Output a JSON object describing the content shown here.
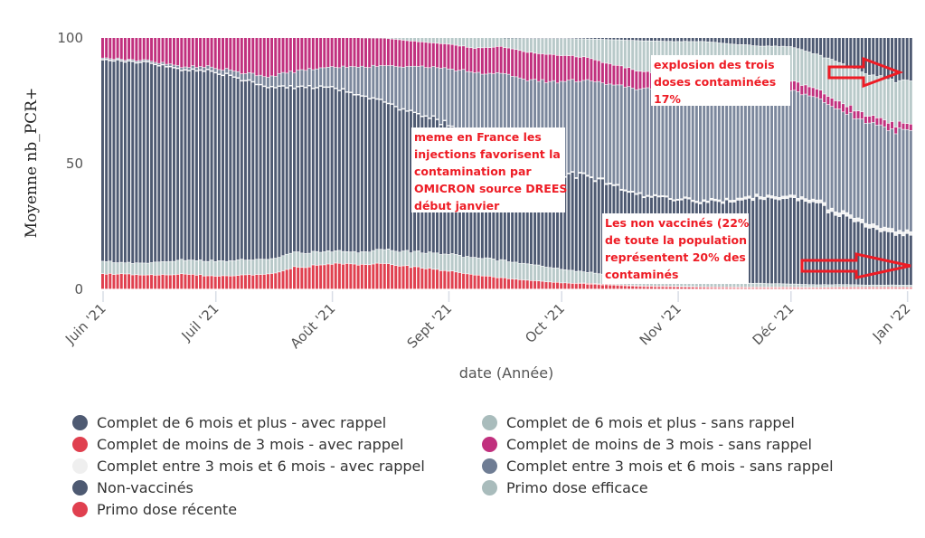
{
  "chart_data": {
    "type": "bar",
    "stacked": true,
    "normalized_percent": true,
    "title": "",
    "xlabel": "date (Année)",
    "ylabel": "Moyenne nb_PCR+",
    "ylim": [
      0,
      100
    ],
    "yticks": [
      "0",
      "50",
      "100"
    ],
    "ytick_values": [
      0,
      50,
      100
    ],
    "xtick_labels": [
      "Juin '21",
      "Juil '21",
      "Août '21",
      "Sept '21",
      "Oct '21",
      "Nov '21",
      "Déc '21",
      "Jan '22"
    ],
    "x_start": "2021-06-01",
    "x_end": "2022-01-02",
    "granularity": "daily",
    "anchor_days": [
      0,
      7,
      14,
      21,
      30,
      37,
      44,
      51,
      61,
      68,
      75,
      82,
      92,
      99,
      106,
      113,
      122,
      129,
      136,
      143,
      153,
      160,
      167,
      174,
      183,
      190,
      197,
      204,
      210,
      214
    ],
    "stack_order_bottom_to_top": [
      "Primo dose récente",
      "Complet de moins de 3 mois - avec rappel",
      "Primo dose efficace",
      "Non-vaccinés",
      "Complet entre 3 mois et 6 mois - avec rappel",
      "Complet entre 3 mois et 6 mois - sans rappel",
      "Complet de moins de 3 mois - sans rappel",
      "Complet de 6 mois et plus - sans rappel",
      "Complet de 6 mois et plus - avec rappel"
    ],
    "series": [
      {
        "name": "Primo dose récente",
        "color": "#e0404f",
        "values": [
          6,
          6,
          5.5,
          6,
          5,
          5.5,
          6,
          8.5,
          10,
          10,
          10,
          9,
          7,
          5.5,
          4.5,
          3.5,
          2.5,
          2,
          1.5,
          1,
          0.8,
          0.6,
          0.5,
          0.4,
          0.4,
          0.3,
          0.3,
          0.3,
          0.3,
          0.3
        ]
      },
      {
        "name": "Complet de moins de 3 mois - avec rappel",
        "color": "#e0404f",
        "values": [
          0,
          0,
          0,
          0,
          0,
          0,
          0,
          0,
          0,
          0,
          0,
          0,
          0,
          0,
          0,
          0,
          0,
          0.3,
          0.3,
          0.3,
          0.3,
          0.3,
          0.3,
          0.4,
          0.4,
          0.4,
          0.5,
          0.5,
          0.5,
          0.5
        ]
      },
      {
        "name": "Primo dose efficace",
        "color": "#b8c9c9",
        "values": [
          5,
          4.5,
          5,
          5.5,
          6,
          6,
          6,
          6,
          5,
          5,
          5.5,
          6,
          6.5,
          7,
          7,
          6.5,
          5.5,
          4.5,
          3.5,
          3,
          2.5,
          2,
          1.8,
          1.5,
          1.2,
          1,
          1,
          0.8,
          0.8,
          0.8
        ]
      },
      {
        "name": "Non-vaccinés",
        "color": "#4e5a72",
        "values": [
          80,
          80,
          79,
          76,
          75,
          72,
          68,
          66,
          65,
          62,
          58,
          55,
          52,
          46,
          44,
          40,
          38,
          38,
          36,
          33,
          32,
          32,
          33,
          34,
          34,
          32,
          27,
          23,
          20,
          20
        ]
      },
      {
        "name": "Complet entre 3 mois et 6 mois - avec rappel",
        "color": "#f0f0f0",
        "values": [
          0.3,
          0.3,
          0.3,
          0.3,
          0.3,
          0.3,
          0.3,
          0.3,
          0.3,
          0.3,
          0.3,
          0.3,
          0.3,
          0.3,
          0.3,
          0.3,
          0.3,
          0.5,
          0.5,
          0.5,
          0.5,
          0.7,
          0.8,
          1,
          1,
          1.2,
          1.5,
          1.5,
          1.5,
          1.5
        ]
      },
      {
        "name": "Complet entre 3 mois et 6 mois - sans rappel",
        "color": "#7b879c",
        "values": [
          0.5,
          0.5,
          0.7,
          1,
          1.5,
          2.5,
          4,
          6,
          8,
          11,
          14,
          18,
          22,
          27,
          30,
          33,
          36,
          38,
          40,
          42,
          43,
          44,
          44,
          43,
          42,
          41,
          40,
          40,
          40,
          40
        ]
      },
      {
        "name": "Complet de moins de 3 mois - sans rappel",
        "color": "#c1307e",
        "values": [
          8.2,
          8.7,
          9.5,
          11.2,
          11.9,
          13.7,
          15.7,
          13.2,
          11.7,
          11.7,
          11,
          10.2,
          9.5,
          10,
          10.5,
          11,
          10.5,
          9,
          8,
          7,
          5.5,
          4.8,
          4.3,
          4,
          3.8,
          3.5,
          3.2,
          2.8,
          2.8,
          2.5
        ]
      },
      {
        "name": "Complet de 6 mois et plus - sans rappel",
        "color": "#b8c9c9",
        "values": [
          0,
          0,
          0,
          0,
          0,
          0,
          0,
          0,
          0,
          0,
          0.2,
          1.3,
          2.5,
          4.2,
          3.5,
          5.5,
          6.7,
          7.5,
          10,
          12,
          14.5,
          14.5,
          14,
          13.5,
          13.5,
          14,
          16,
          16.5,
          17,
          17
        ]
      },
      {
        "name": "Complet de 6 mois et plus - avec rappel",
        "color": "#4e5a72",
        "values": [
          0,
          0,
          0,
          0,
          0,
          0,
          0,
          0,
          0,
          0,
          0,
          0,
          0,
          0,
          0,
          0.3,
          0.3,
          0.5,
          0.8,
          1.2,
          1.5,
          1.5,
          2.5,
          3.2,
          3.5,
          6.6,
          10.5,
          14.6,
          16.8,
          17.4
        ]
      }
    ],
    "annotations": [
      {
        "lines": [
          "meme en France les",
          "injections favorisent la",
          "contamination par",
          "OMICRON source DREES",
          "début janvier"
        ]
      },
      {
        "lines": [
          "explosion des trois",
          "doses contaminées",
          "17%"
        ]
      },
      {
        "lines": [
          "Les non vaccinés (22%",
          "de toute la population",
          "représentent 20%  des",
          "contaminés"
        ]
      }
    ],
    "arrows": [
      {
        "name": "arrow-three-doses",
        "points_to": "Complet de 6 mois et plus - avec rappel",
        "date": "2022-01-01"
      },
      {
        "name": "arrow-unvaccinated",
        "points_to": "Non-vaccinés",
        "date": "2022-01-01"
      }
    ],
    "legend_position": "bottom",
    "grid": false
  },
  "legend": {
    "col1": [
      {
        "label": "Complet de 6 mois et plus - avec rappel",
        "color": "#4e5a72"
      },
      {
        "label": "Complet de moins de 3 mois - avec rappel",
        "color": "#e0404f"
      },
      {
        "label": "Complet entre 3 mois et 6 mois - avec rappel",
        "color": "#efefef"
      },
      {
        "label": "Non-vaccinés",
        "color": "#4e5a72"
      },
      {
        "label": "Primo dose récente",
        "color": "#e0404f"
      }
    ],
    "col2": [
      {
        "label": "Complet de 6 mois et plus - sans rappel",
        "color": "#a9bcbc"
      },
      {
        "label": "Complet de moins de 3 mois - sans rappel",
        "color": "#c1307e"
      },
      {
        "label": "Complet entre 3 mois et 6 mois - sans rappel",
        "color": "#6f7d94"
      },
      {
        "label": "Primo dose efficace",
        "color": "#a9bcbc"
      }
    ]
  },
  "arrow_color": "#ee1c25"
}
